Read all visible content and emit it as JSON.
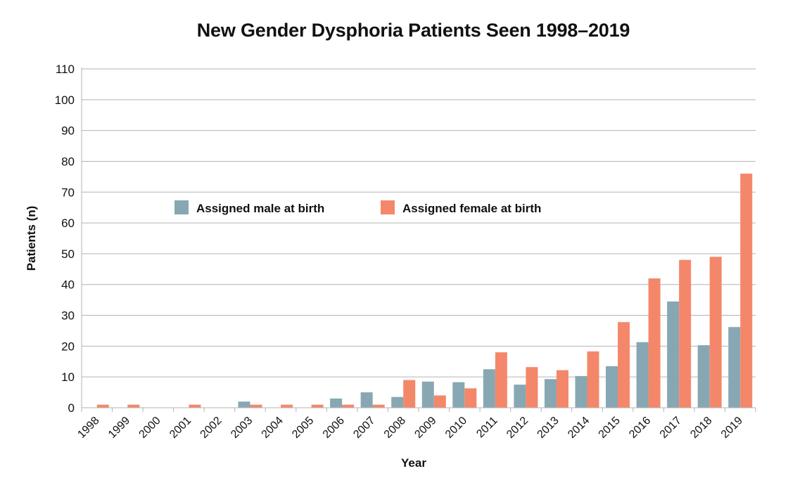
{
  "chart_data": {
    "type": "bar",
    "title": "New Gender Dysphoria Patients Seen 1998–2019",
    "xlabel": "Year",
    "ylabel": "Patients (n)",
    "ylim": [
      0,
      110
    ],
    "yticks": [
      0,
      10,
      20,
      30,
      40,
      50,
      60,
      70,
      80,
      90,
      100,
      110
    ],
    "grid": true,
    "legend_position": "top-center",
    "categories": [
      "1998",
      "1999",
      "2000",
      "2001",
      "2002",
      "2003",
      "2004",
      "2005",
      "2006",
      "2007",
      "2008",
      "2009",
      "2010",
      "2011",
      "2012",
      "2013",
      "2014",
      "2015",
      "2016",
      "2017",
      "2018",
      "2019"
    ],
    "series": [
      {
        "name": "Assigned male at birth",
        "color": "#87a7b3",
        "values": [
          0,
          0,
          0,
          0,
          0,
          2,
          0,
          0,
          3,
          5,
          3.5,
          8.5,
          8.3,
          12.5,
          7.5,
          9.3,
          10.3,
          13.5,
          21.3,
          34.5,
          20.3,
          26.2
        ]
      },
      {
        "name": "Assigned female at birth",
        "color": "#f4876a",
        "values": [
          1,
          1,
          0,
          1,
          0,
          1,
          1,
          1,
          1,
          1,
          9,
          4,
          6.3,
          18,
          13.2,
          12.2,
          18.3,
          27.8,
          42,
          48,
          49,
          76
        ]
      }
    ]
  }
}
